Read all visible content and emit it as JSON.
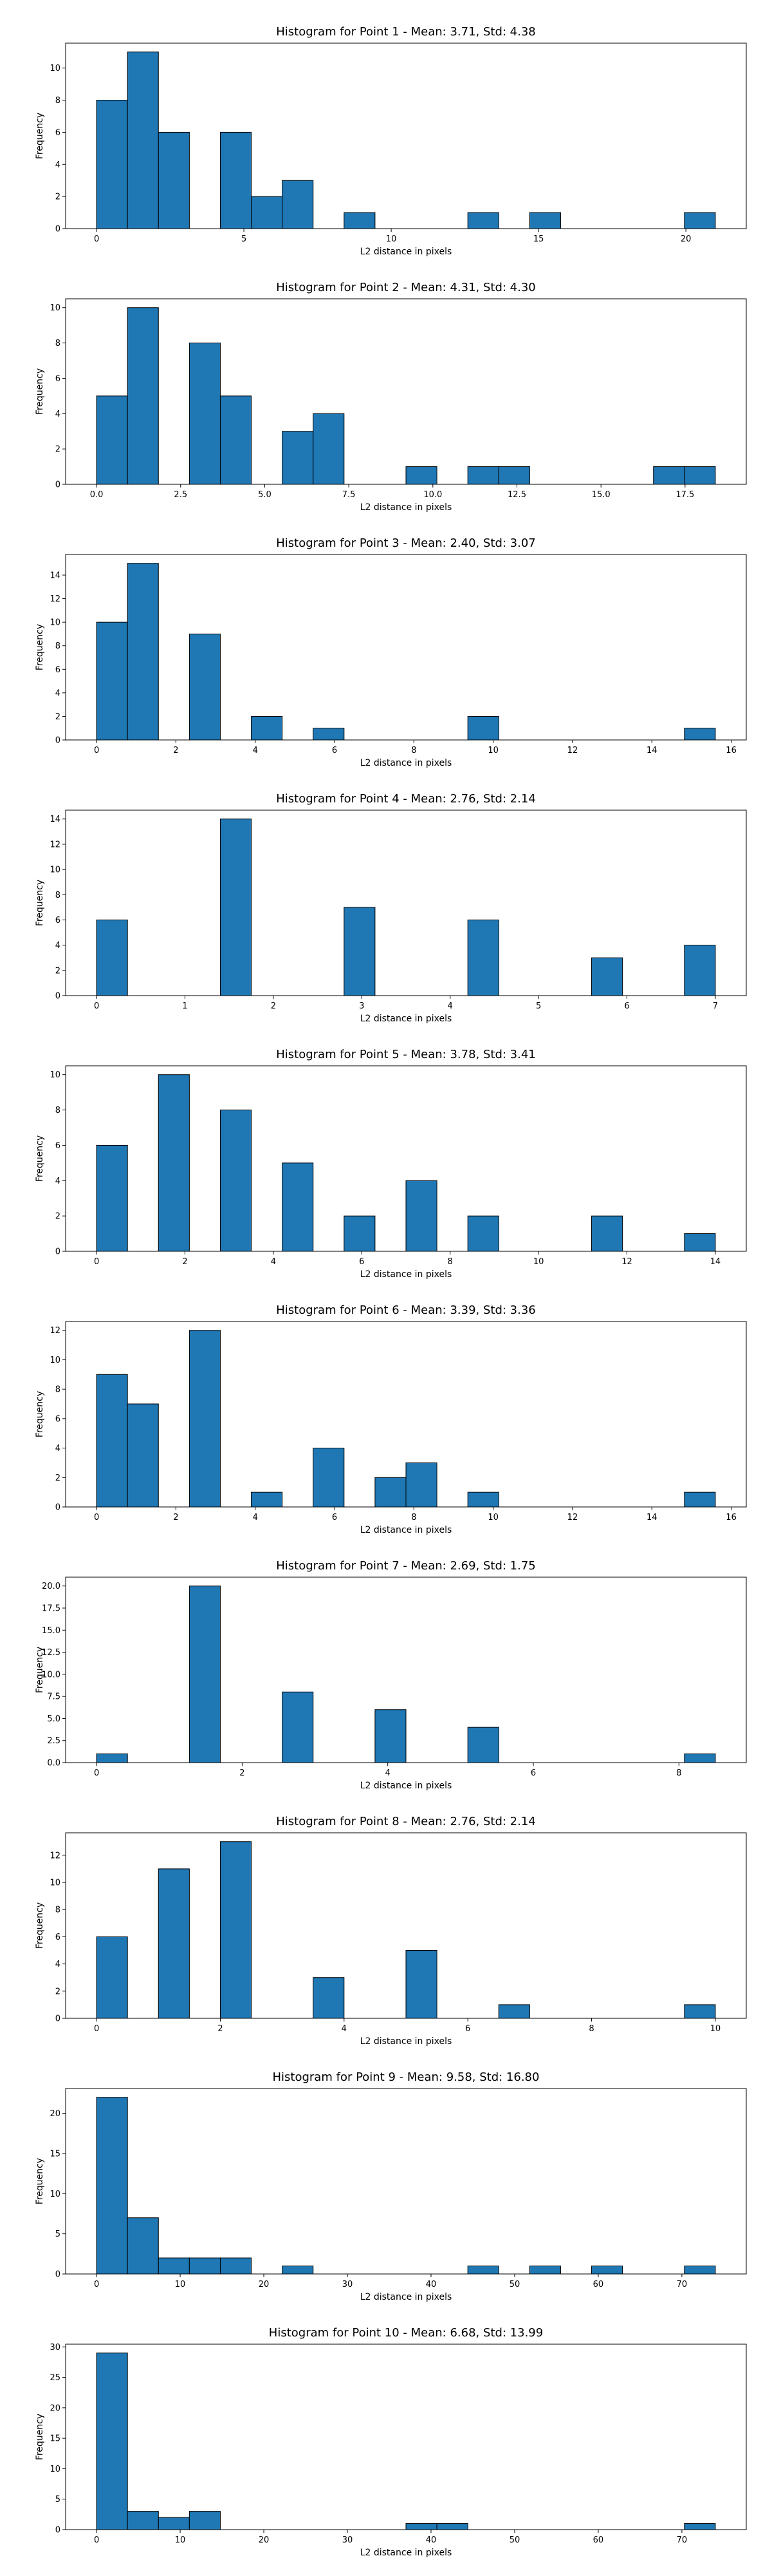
{
  "chart_data": [
    {
      "type": "bar",
      "title": "Histogram for Point 1 - Mean: 3.71, Std: 4.38",
      "xlabel": "L2 distance in pixels",
      "ylabel": "Frequency",
      "xlim": [
        -1.05,
        22.05
      ],
      "ylim": [
        0,
        11.55
      ],
      "xticks": [
        0,
        5,
        10,
        15,
        20
      ],
      "xtick_labels": [
        "0",
        "5",
        "10",
        "15",
        "20"
      ],
      "yticks": [
        0,
        2,
        4,
        6,
        8,
        10
      ],
      "ytick_labels": [
        "0",
        "2",
        "4",
        "6",
        "8",
        "10"
      ],
      "bins": [
        [
          0,
          1.05,
          8
        ],
        [
          1.05,
          2.1,
          11
        ],
        [
          2.1,
          3.15,
          6
        ],
        [
          4.2,
          5.25,
          6
        ],
        [
          5.25,
          6.3,
          2
        ],
        [
          6.3,
          7.35,
          3
        ],
        [
          8.4,
          9.45,
          1
        ],
        [
          12.6,
          13.65,
          1
        ],
        [
          14.7,
          15.75,
          1
        ],
        [
          19.95,
          21.0,
          1
        ]
      ]
    },
    {
      "type": "bar",
      "title": "Histogram for Point 2 - Mean: 4.31, Std: 4.30",
      "xlabel": "L2 distance in pixels",
      "ylabel": "Frequency",
      "xlim": [
        -0.92,
        19.32
      ],
      "ylim": [
        0,
        10.5
      ],
      "xticks": [
        0,
        2.5,
        5,
        7.5,
        10,
        12.5,
        15,
        17.5
      ],
      "xtick_labels": [
        "0.0",
        "2.5",
        "5.0",
        "7.5",
        "10.0",
        "12.5",
        "15.0",
        "17.5"
      ],
      "yticks": [
        0,
        2,
        4,
        6,
        8,
        10
      ],
      "ytick_labels": [
        "0",
        "2",
        "4",
        "6",
        "8",
        "10"
      ],
      "bins": [
        [
          0,
          0.92,
          5
        ],
        [
          0.92,
          1.84,
          10
        ],
        [
          2.76,
          3.68,
          8
        ],
        [
          3.68,
          4.6,
          5
        ],
        [
          5.52,
          6.44,
          3
        ],
        [
          6.44,
          7.36,
          4
        ],
        [
          9.2,
          10.12,
          1
        ],
        [
          11.04,
          11.96,
          1
        ],
        [
          11.96,
          12.88,
          1
        ],
        [
          16.56,
          17.48,
          1
        ],
        [
          17.48,
          18.4,
          1
        ]
      ]
    },
    {
      "type": "bar",
      "title": "Histogram for Point 3 - Mean: 2.40, Std: 3.07",
      "xlabel": "L2 distance in pixels",
      "ylabel": "Frequency",
      "xlim": [
        -0.78,
        16.38
      ],
      "ylim": [
        0,
        15.75
      ],
      "xticks": [
        0,
        2,
        4,
        6,
        8,
        10,
        12,
        14,
        16
      ],
      "xtick_labels": [
        "0",
        "2",
        "4",
        "6",
        "8",
        "10",
        "12",
        "14",
        "16"
      ],
      "yticks": [
        0,
        2,
        4,
        6,
        8,
        10,
        12,
        14
      ],
      "ytick_labels": [
        "0",
        "2",
        "4",
        "6",
        "8",
        "10",
        "12",
        "14"
      ],
      "bins": [
        [
          0,
          0.78,
          10
        ],
        [
          0.78,
          1.56,
          15
        ],
        [
          2.34,
          3.12,
          9
        ],
        [
          3.9,
          4.68,
          2
        ],
        [
          5.46,
          6.24,
          1
        ],
        [
          9.36,
          10.14,
          2
        ],
        [
          14.82,
          15.6,
          1
        ]
      ]
    },
    {
      "type": "bar",
      "title": "Histogram for Point 4 - Mean: 2.76, Std: 2.14",
      "xlabel": "L2 distance in pixels",
      "ylabel": "Frequency",
      "xlim": [
        -0.35,
        7.35
      ],
      "ylim": [
        0,
        14.7
      ],
      "xticks": [
        0,
        1,
        2,
        3,
        4,
        5,
        6,
        7
      ],
      "xtick_labels": [
        "0",
        "1",
        "2",
        "3",
        "4",
        "5",
        "6",
        "7"
      ],
      "yticks": [
        0,
        2,
        4,
        6,
        8,
        10,
        12,
        14
      ],
      "ytick_labels": [
        "0",
        "2",
        "4",
        "6",
        "8",
        "10",
        "12",
        "14"
      ],
      "bins": [
        [
          0,
          0.35,
          6
        ],
        [
          1.4,
          1.75,
          14
        ],
        [
          2.8,
          3.15,
          7
        ],
        [
          4.2,
          4.55,
          6
        ],
        [
          5.6,
          5.95,
          3
        ],
        [
          6.65,
          7.0,
          4
        ]
      ]
    },
    {
      "type": "bar",
      "title": "Histogram for Point 5 - Mean: 3.78, Std: 3.41",
      "xlabel": "L2 distance in pixels",
      "ylabel": "Frequency",
      "xlim": [
        -0.7,
        14.7
      ],
      "ylim": [
        0,
        10.5
      ],
      "xticks": [
        0,
        2,
        4,
        6,
        8,
        10,
        12,
        14
      ],
      "xtick_labels": [
        "0",
        "2",
        "4",
        "6",
        "8",
        "10",
        "12",
        "14"
      ],
      "yticks": [
        0,
        2,
        4,
        6,
        8,
        10
      ],
      "ytick_labels": [
        "0",
        "2",
        "4",
        "6",
        "8",
        "10"
      ],
      "bins": [
        [
          0,
          0.7,
          6
        ],
        [
          1.4,
          2.1,
          10
        ],
        [
          2.8,
          3.5,
          8
        ],
        [
          4.2,
          4.9,
          5
        ],
        [
          5.6,
          6.3,
          2
        ],
        [
          7.0,
          7.7,
          4
        ],
        [
          8.4,
          9.1,
          2
        ],
        [
          11.2,
          11.9,
          2
        ],
        [
          13.3,
          14.0,
          1
        ]
      ]
    },
    {
      "type": "bar",
      "title": "Histogram for Point 6 - Mean: 3.39, Std: 3.36",
      "xlabel": "L2 distance in pixels",
      "ylabel": "Frequency",
      "xlim": [
        -0.78,
        16.38
      ],
      "ylim": [
        0,
        12.6
      ],
      "xticks": [
        0,
        2,
        4,
        6,
        8,
        10,
        12,
        14,
        16
      ],
      "xtick_labels": [
        "0",
        "2",
        "4",
        "6",
        "8",
        "10",
        "12",
        "14",
        "16"
      ],
      "yticks": [
        0,
        2,
        4,
        6,
        8,
        10,
        12
      ],
      "ytick_labels": [
        "0",
        "2",
        "4",
        "6",
        "8",
        "10",
        "12"
      ],
      "bins": [
        [
          0,
          0.78,
          9
        ],
        [
          0.78,
          1.56,
          7
        ],
        [
          2.34,
          3.12,
          12
        ],
        [
          3.9,
          4.68,
          1
        ],
        [
          5.46,
          6.24,
          4
        ],
        [
          7.02,
          7.8,
          2
        ],
        [
          7.8,
          8.58,
          3
        ],
        [
          9.36,
          10.14,
          1
        ],
        [
          14.82,
          15.6,
          1
        ]
      ]
    },
    {
      "type": "bar",
      "title": "Histogram for Point 7 - Mean: 2.69, Std: 1.75",
      "xlabel": "L2 distance in pixels",
      "ylabel": "Frequency",
      "xlim": [
        -0.425,
        8.925
      ],
      "ylim": [
        0,
        21.0
      ],
      "xticks": [
        0,
        2,
        4,
        6,
        8
      ],
      "xtick_labels": [
        "0",
        "2",
        "4",
        "6",
        "8"
      ],
      "yticks": [
        0,
        2.5,
        5,
        7.5,
        10,
        12.5,
        15,
        17.5,
        20
      ],
      "ytick_labels": [
        "0.0",
        "2.5",
        "5.0",
        "7.5",
        "10.0",
        "12.5",
        "15.0",
        "17.5",
        "20.0"
      ],
      "bins": [
        [
          0,
          0.425,
          1
        ],
        [
          1.275,
          1.7,
          20
        ],
        [
          2.55,
          2.975,
          8
        ],
        [
          3.825,
          4.25,
          6
        ],
        [
          5.1,
          5.525,
          4
        ],
        [
          8.075,
          8.5,
          1
        ]
      ]
    },
    {
      "type": "bar",
      "title": "Histogram for Point 8 - Mean: 2.76, Std: 2.14",
      "xlabel": "L2 distance in pixels",
      "ylabel": "Frequency",
      "xlim": [
        -0.5,
        10.5
      ],
      "ylim": [
        0,
        13.65
      ],
      "xticks": [
        0,
        2,
        4,
        6,
        8,
        10
      ],
      "xtick_labels": [
        "0",
        "2",
        "4",
        "6",
        "8",
        "10"
      ],
      "yticks": [
        0,
        2,
        4,
        6,
        8,
        10,
        12
      ],
      "ytick_labels": [
        "0",
        "2",
        "4",
        "6",
        "8",
        "10",
        "12"
      ],
      "bins": [
        [
          0,
          0.5,
          6
        ],
        [
          1.0,
          1.5,
          11
        ],
        [
          2.0,
          2.5,
          13
        ],
        [
          3.5,
          4.0,
          3
        ],
        [
          5.0,
          5.5,
          5
        ],
        [
          6.5,
          7.0,
          1
        ],
        [
          9.5,
          10.0,
          1
        ]
      ]
    },
    {
      "type": "bar",
      "title": "Histogram for Point 9 - Mean: 9.58, Std: 16.80",
      "xlabel": "L2 distance in pixels",
      "ylabel": "Frequency",
      "xlim": [
        -3.7,
        77.7
      ],
      "ylim": [
        0,
        23.1
      ],
      "xticks": [
        0,
        10,
        20,
        30,
        40,
        50,
        60,
        70
      ],
      "xtick_labels": [
        "0",
        "10",
        "20",
        "30",
        "40",
        "50",
        "60",
        "70"
      ],
      "yticks": [
        0,
        5,
        10,
        15,
        20
      ],
      "ytick_labels": [
        "0",
        "5",
        "10",
        "15",
        "20"
      ],
      "bins": [
        [
          0,
          3.7,
          22
        ],
        [
          3.7,
          7.4,
          7
        ],
        [
          7.4,
          11.1,
          2
        ],
        [
          11.1,
          14.8,
          2
        ],
        [
          14.8,
          18.5,
          2
        ],
        [
          22.2,
          25.9,
          1
        ],
        [
          44.4,
          48.1,
          1
        ],
        [
          51.8,
          55.5,
          1
        ],
        [
          59.2,
          62.9,
          1
        ],
        [
          70.3,
          74.0,
          1
        ]
      ]
    },
    {
      "type": "bar",
      "title": "Histogram for Point 10 - Mean: 6.68, Std: 13.99",
      "xlabel": "L2 distance in pixels",
      "ylabel": "Frequency",
      "xlim": [
        -3.7,
        77.7
      ],
      "ylim": [
        0,
        30.45
      ],
      "xticks": [
        0,
        10,
        20,
        30,
        40,
        50,
        60,
        70
      ],
      "xtick_labels": [
        "0",
        "10",
        "20",
        "30",
        "40",
        "50",
        "60",
        "70"
      ],
      "yticks": [
        0,
        5,
        10,
        15,
        20,
        25,
        30
      ],
      "ytick_labels": [
        "0",
        "5",
        "10",
        "15",
        "20",
        "25",
        "30"
      ],
      "bins": [
        [
          0,
          3.7,
          29
        ],
        [
          3.7,
          7.4,
          3
        ],
        [
          7.4,
          11.1,
          2
        ],
        [
          11.1,
          14.8,
          3
        ],
        [
          37.0,
          40.7,
          1
        ],
        [
          40.7,
          44.4,
          1
        ],
        [
          70.3,
          74.0,
          1
        ]
      ]
    }
  ]
}
